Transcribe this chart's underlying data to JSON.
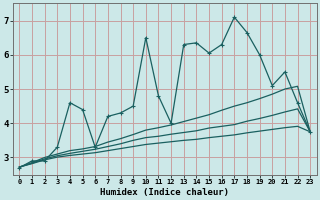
{
  "title": "",
  "xlabel": "Humidex (Indice chaleur)",
  "bg_color": "#cce8e8",
  "grid_color": "#c8a0a0",
  "line_color": "#1a6060",
  "xlim": [
    -0.5,
    23.5
  ],
  "ylim": [
    2.5,
    7.5
  ],
  "xticks": [
    0,
    1,
    2,
    3,
    4,
    5,
    6,
    7,
    8,
    9,
    10,
    11,
    12,
    13,
    14,
    15,
    16,
    17,
    18,
    19,
    20,
    21,
    22,
    23
  ],
  "yticks": [
    3,
    4,
    5,
    6,
    7
  ],
  "x_data": [
    0,
    1,
    2,
    3,
    4,
    5,
    6,
    7,
    8,
    9,
    10,
    11,
    12,
    13,
    14,
    15,
    16,
    17,
    18,
    19,
    20,
    21,
    22,
    23
  ],
  "y_jagged": [
    2.7,
    2.9,
    2.9,
    3.3,
    4.6,
    4.4,
    3.3,
    4.2,
    4.3,
    4.5,
    6.5,
    4.8,
    4.0,
    6.3,
    6.35,
    6.05,
    6.3,
    7.1,
    6.65,
    6.0,
    5.1,
    5.5,
    4.6,
    3.75
  ],
  "y_trend1": [
    2.72,
    2.85,
    3.0,
    3.1,
    3.2,
    3.25,
    3.32,
    3.45,
    3.55,
    3.67,
    3.8,
    3.87,
    3.95,
    4.05,
    4.15,
    4.25,
    4.38,
    4.5,
    4.6,
    4.72,
    4.85,
    5.0,
    5.08,
    3.75
  ],
  "y_trend2": [
    2.72,
    2.83,
    2.96,
    3.05,
    3.12,
    3.18,
    3.24,
    3.32,
    3.4,
    3.5,
    3.58,
    3.62,
    3.68,
    3.73,
    3.78,
    3.86,
    3.91,
    3.96,
    4.06,
    4.14,
    4.23,
    4.33,
    4.42,
    3.75
  ],
  "y_flat": [
    2.72,
    2.82,
    2.93,
    3.01,
    3.06,
    3.1,
    3.14,
    3.2,
    3.26,
    3.32,
    3.38,
    3.42,
    3.46,
    3.5,
    3.53,
    3.58,
    3.62,
    3.66,
    3.72,
    3.77,
    3.82,
    3.87,
    3.91,
    3.75
  ]
}
